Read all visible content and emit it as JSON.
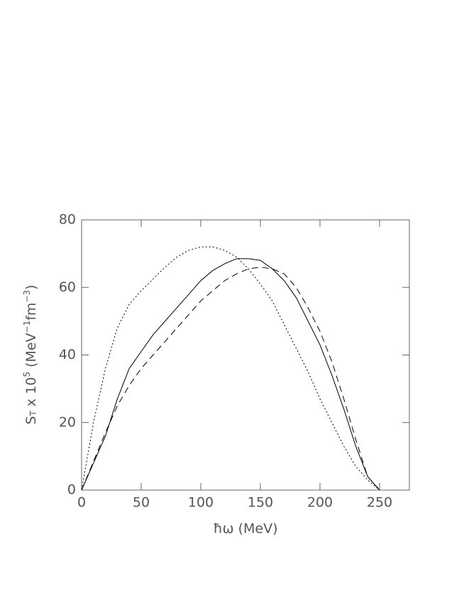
{
  "chart_data": {
    "type": "line",
    "x_label": "ħω (MeV)",
    "y_label_parts": [
      {
        "text": "S",
        "position": "baseline"
      },
      {
        "text": "T",
        "position": "sub"
      },
      {
        "text": " x 10",
        "position": "baseline"
      },
      {
        "text": "5",
        "position": "super"
      },
      {
        "text": " (MeV",
        "position": "baseline"
      },
      {
        "text": "−1",
        "position": "super"
      },
      {
        "text": "fm",
        "position": "baseline"
      },
      {
        "text": "−3",
        "position": "super"
      },
      {
        "text": ")",
        "position": "baseline"
      }
    ],
    "x": [
      0,
      10,
      20,
      30,
      40,
      50,
      60,
      70,
      80,
      90,
      100,
      110,
      120,
      130,
      140,
      150,
      160,
      170,
      180,
      190,
      200,
      210,
      220,
      230,
      240,
      250
    ],
    "series": [
      {
        "color": "#000000",
        "dash": "solid",
        "values": [
          0,
          8,
          16,
          27,
          36,
          41,
          46,
          50,
          54,
          58,
          62,
          65,
          67,
          68.5,
          68.5,
          68,
          65.5,
          62,
          57,
          50,
          43,
          34,
          24,
          13,
          4,
          0
        ]
      },
      {
        "color": "#000000",
        "dash": "dashed",
        "values": [
          0,
          8.5,
          17,
          25,
          31,
          36,
          40,
          44,
          48,
          52,
          56,
          59,
          62,
          64,
          65.5,
          66,
          65.5,
          64,
          60,
          54,
          47,
          38,
          27,
          15,
          4,
          0
        ]
      },
      {
        "color": "#000000",
        "dash": "dotted",
        "values": [
          0,
          20,
          36,
          48,
          55,
          59,
          62.5,
          66,
          69,
          71,
          72,
          72,
          71,
          69,
          65.5,
          61,
          56,
          49,
          42,
          35,
          27,
          20,
          13,
          7,
          3,
          0
        ]
      }
    ],
    "xlim": [
      0,
      275
    ],
    "xticks": [
      0,
      50,
      100,
      150,
      200,
      250
    ],
    "ylim": [
      0,
      80
    ],
    "yticks": [
      0,
      20,
      40,
      60,
      80
    ],
    "grid": false
  }
}
